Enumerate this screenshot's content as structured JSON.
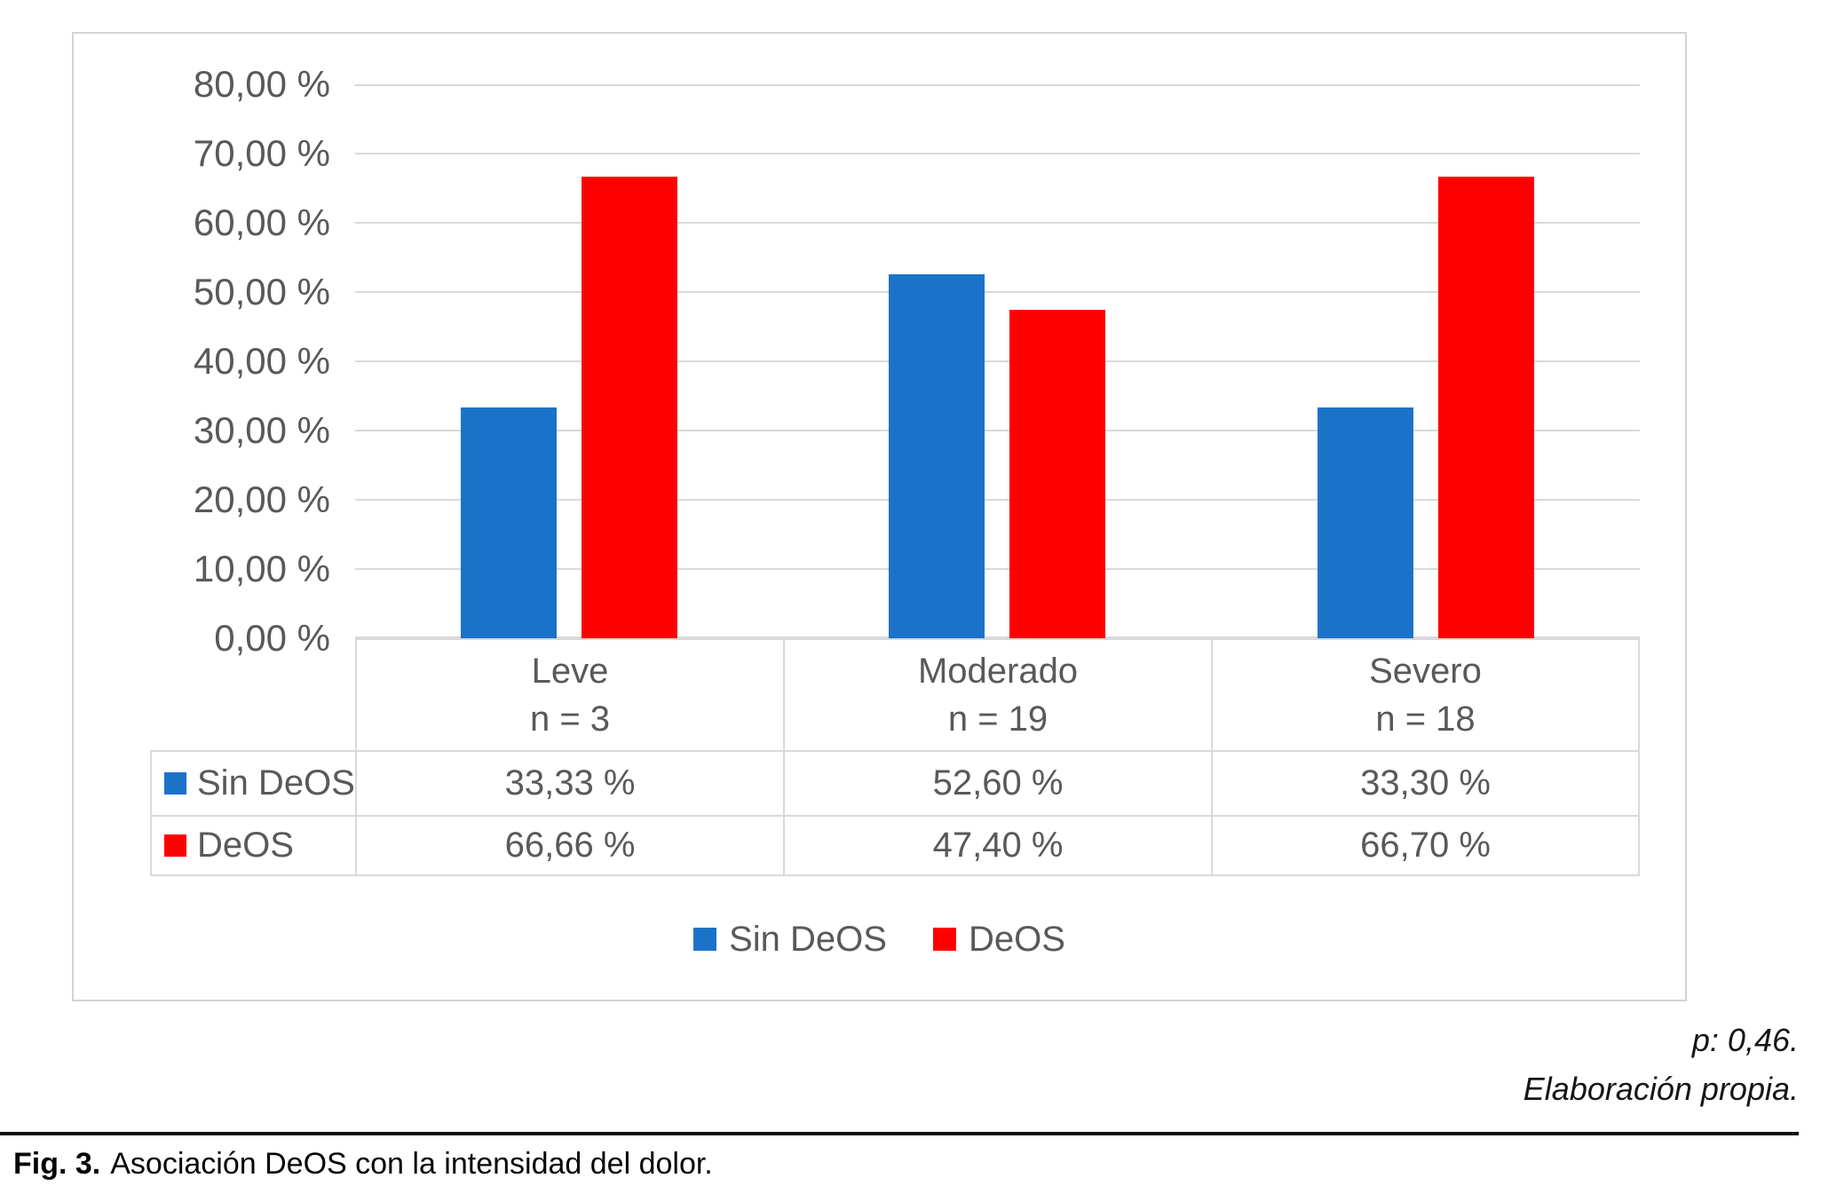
{
  "chart_data": {
    "type": "bar",
    "title": "",
    "categories": [
      "Leve",
      "Moderado",
      "Severo"
    ],
    "category_counts": [
      "n = 3",
      "n = 19",
      "n = 18"
    ],
    "series": [
      {
        "name": "Sin DeOS",
        "color": "#1B73C9",
        "values": [
          33.33,
          52.6,
          33.3
        ],
        "display_values": [
          "33,33 %",
          "52,60 %",
          "33,30 %"
        ]
      },
      {
        "name": "DeOS",
        "color": "#FF0000",
        "values": [
          66.66,
          47.4,
          66.7
        ],
        "display_values": [
          "66,66 %",
          "47,40 %",
          "66,70 %"
        ]
      }
    ],
    "y_axis": {
      "min": 0,
      "max": 80,
      "step": 10,
      "tick_labels": [
        "80,00 %",
        "70,00 %",
        "60,00 %",
        "50,00 %",
        "40,00 %",
        "30,00 %",
        "20,00 %",
        "10,00 %",
        "0,00 %"
      ]
    },
    "legend_position": "bottom",
    "grid": true,
    "data_table_shown": true
  },
  "annotations": {
    "p_value": "p: 0,46.",
    "source": "Elaboración propia."
  },
  "caption": {
    "label": "Fig. 3.",
    "text": "Asociación DeOS con la intensidad del dolor."
  },
  "colors": {
    "series_blue": "#1B73C9",
    "series_red": "#FF0000",
    "grid_line": "#D9D9D9",
    "chart_border": "#D4D4D4",
    "chart_text": "#595959",
    "caption_text": "#050505"
  }
}
